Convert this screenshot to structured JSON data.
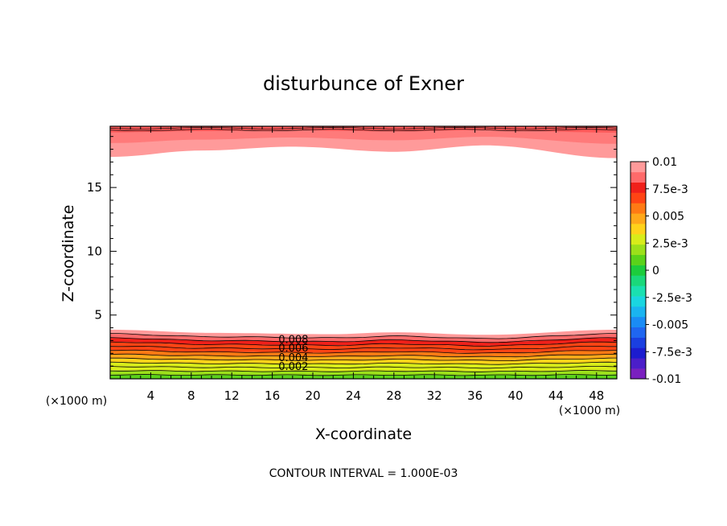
{
  "chart_data": {
    "type": "contour",
    "title": "disturbunce of Exner",
    "xlabel": "X-coordinate",
    "ylabel": "Z-coordinate",
    "x_unit_label": "(×1000 m)",
    "x_unit_label_right": "(×1000 m)",
    "footer": "CONTOUR INTERVAL = 1.000E-03",
    "xlim": [
      0,
      50
    ],
    "ylim": [
      0,
      19.8
    ],
    "x_ticks": [
      4,
      8,
      12,
      16,
      20,
      24,
      28,
      32,
      36,
      40,
      44,
      48
    ],
    "y_ticks": [
      5,
      10,
      15
    ],
    "contour_interval": 0.001,
    "contour_labels": [
      {
        "text": "0.008",
        "x": 16.6,
        "z": 2.8
      },
      {
        "text": "0.006",
        "x": 16.6,
        "z": 2.15
      },
      {
        "text": "0.004",
        "x": 16.6,
        "z": 1.4
      },
      {
        "text": "0.002",
        "x": 16.6,
        "z": 0.7
      }
    ],
    "colorbar": {
      "tick_labels": [
        "0.01",
        "7.5e-3",
        "0.005",
        "2.5e-3",
        "0",
        "-2.5e-3",
        "-0.005",
        "-7.5e-3",
        "-0.01"
      ],
      "levels": [
        -0.01,
        -0.009,
        -0.008,
        -0.007,
        -0.006,
        -0.005,
        -0.004,
        -0.003,
        -0.002,
        -0.001,
        0,
        0.001,
        0.002,
        0.003,
        0.004,
        0.005,
        0.006,
        0.007,
        0.008,
        0.009,
        0.01
      ],
      "colors": [
        "#7a1fbf",
        "#4b1ec9",
        "#1c1ccf",
        "#1a3fe0",
        "#1f66f0",
        "#1a8cf5",
        "#1ab4f0",
        "#1ad6e0",
        "#1ae0b0",
        "#1ad87a",
        "#1ccc3c",
        "#5ad21a",
        "#9ce01a",
        "#d8ec1a",
        "#ffd21a",
        "#ffa81a",
        "#ff7a14",
        "#ff4414",
        "#f0201a",
        "#ff6a6a",
        "#ff9a9a"
      ]
    },
    "top_band": {
      "note": "positive disturbance band near model top",
      "boundary_z": [
        {
          "x": 0,
          "z": 17.4
        },
        {
          "x": 9,
          "z": 17.9
        },
        {
          "x": 18,
          "z": 18.2
        },
        {
          "x": 28,
          "z": 17.8
        },
        {
          "x": 37,
          "z": 18.3
        },
        {
          "x": 50,
          "z": 17.3
        }
      ]
    },
    "bottom_band": {
      "note": "positive disturbance layer near the surface",
      "top_z": [
        {
          "x": 0,
          "z": 3.85
        },
        {
          "x": 10,
          "z": 3.6
        },
        {
          "x": 22,
          "z": 3.5
        },
        {
          "x": 28,
          "z": 3.65
        },
        {
          "x": 37,
          "z": 3.45
        },
        {
          "x": 50,
          "z": 3.85
        }
      ]
    }
  }
}
